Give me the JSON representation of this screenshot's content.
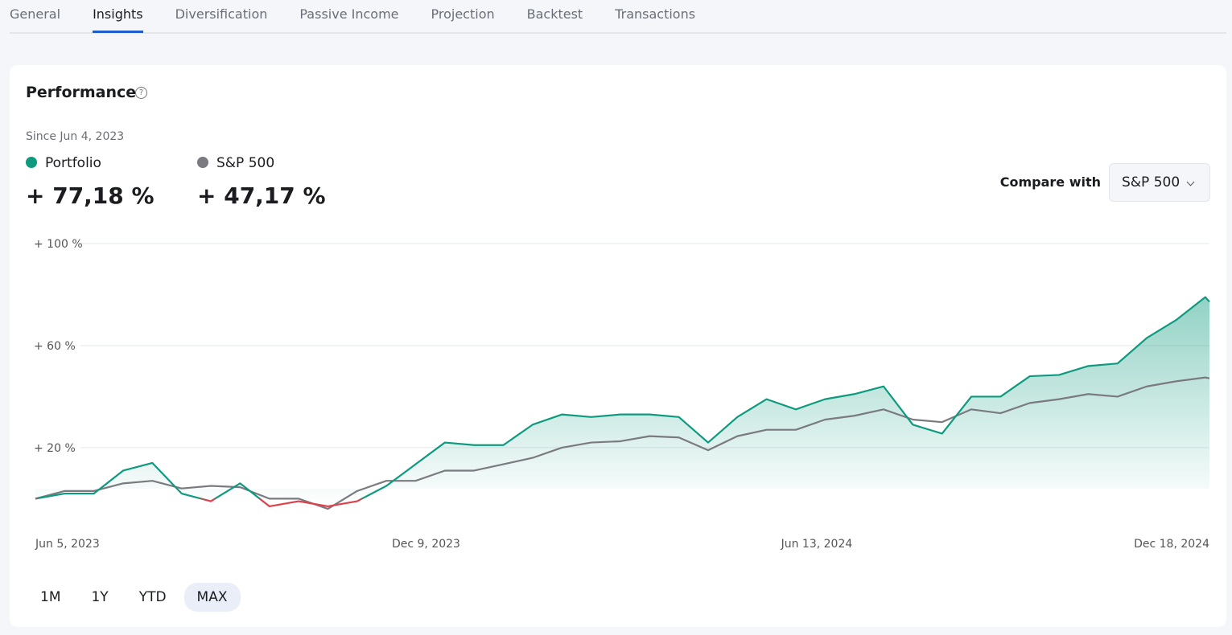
{
  "tabs": {
    "items": [
      "General",
      "Insights",
      "Diversification",
      "Passive Income",
      "Projection",
      "Backtest",
      "Transactions"
    ],
    "active": "Insights"
  },
  "card": {
    "title": "Performance",
    "since": "Since Jun 4, 2023",
    "compare_label": "Compare with",
    "compare_value": "S&P 500",
    "ranges": [
      "1M",
      "1Y",
      "YTD",
      "MAX"
    ],
    "active_range": "MAX"
  },
  "chart_data": {
    "type": "line",
    "x": [
      "2023-06-05",
      "2023-06-19",
      "2023-07-03",
      "2023-07-17",
      "2023-07-31",
      "2023-08-14",
      "2023-08-28",
      "2023-09-11",
      "2023-09-25",
      "2023-10-09",
      "2023-10-23",
      "2023-11-06",
      "2023-11-20",
      "2023-12-04",
      "2023-12-18",
      "2024-01-01",
      "2024-01-15",
      "2024-01-29",
      "2024-02-12",
      "2024-02-26",
      "2024-03-11",
      "2024-03-25",
      "2024-04-08",
      "2024-04-22",
      "2024-05-06",
      "2024-05-20",
      "2024-06-03",
      "2024-06-17",
      "2024-07-01",
      "2024-07-15",
      "2024-07-29",
      "2024-08-12",
      "2024-08-26",
      "2024-09-09",
      "2024-09-23",
      "2024-10-07",
      "2024-10-21",
      "2024-11-04",
      "2024-11-18",
      "2024-12-02",
      "2024-12-16",
      "2024-12-18"
    ],
    "series": [
      {
        "name": "Portfolio",
        "color": "#0e9a7e",
        "negative_color": "#e0404a",
        "total": 77.18,
        "total_label": "+ 77,18 %",
        "values": [
          0,
          2,
          2,
          11,
          14,
          2,
          -1,
          6,
          -3,
          -1,
          -3,
          -1,
          5,
          13.5,
          22,
          21,
          21,
          29,
          33,
          32,
          33,
          33,
          32,
          22,
          32,
          39,
          35,
          39,
          41,
          44,
          29,
          25.5,
          40,
          40,
          48,
          48.5,
          52,
          53,
          63,
          70,
          79,
          77.18
        ]
      },
      {
        "name": "S&P 500",
        "color": "#7a7a80",
        "total": 47.17,
        "total_label": "+ 47,17 %",
        "values": [
          0,
          3,
          3,
          6,
          7,
          4,
          5,
          4.5,
          0,
          0,
          -4,
          3,
          7,
          7,
          11,
          11,
          13.5,
          16,
          20,
          22,
          22.5,
          24.5,
          24,
          19,
          24.5,
          27,
          27,
          31,
          32.5,
          35,
          31,
          30,
          35,
          33.5,
          37.5,
          39,
          41,
          40,
          44,
          46,
          47.5,
          47.17
        ]
      }
    ],
    "xlim": [
      "2023-06-05",
      "2024-12-18"
    ],
    "xticks": [
      {
        "value": "2023-06-05",
        "label": "Jun 5, 2023"
      },
      {
        "value": "2023-12-09",
        "label": "Dec 9, 2023"
      },
      {
        "value": "2024-06-13",
        "label": "Jun 13, 2024"
      },
      {
        "value": "2024-12-18",
        "label": "Dec 18, 2024"
      }
    ],
    "ylim": [
      -15,
      100
    ],
    "yticks": [
      {
        "value": 20,
        "label": "+ 20 %"
      },
      {
        "value": 60,
        "label": "+ 60 %"
      },
      {
        "value": 100,
        "label": "+ 100 %"
      }
    ],
    "grid": true,
    "area_fill": true
  }
}
